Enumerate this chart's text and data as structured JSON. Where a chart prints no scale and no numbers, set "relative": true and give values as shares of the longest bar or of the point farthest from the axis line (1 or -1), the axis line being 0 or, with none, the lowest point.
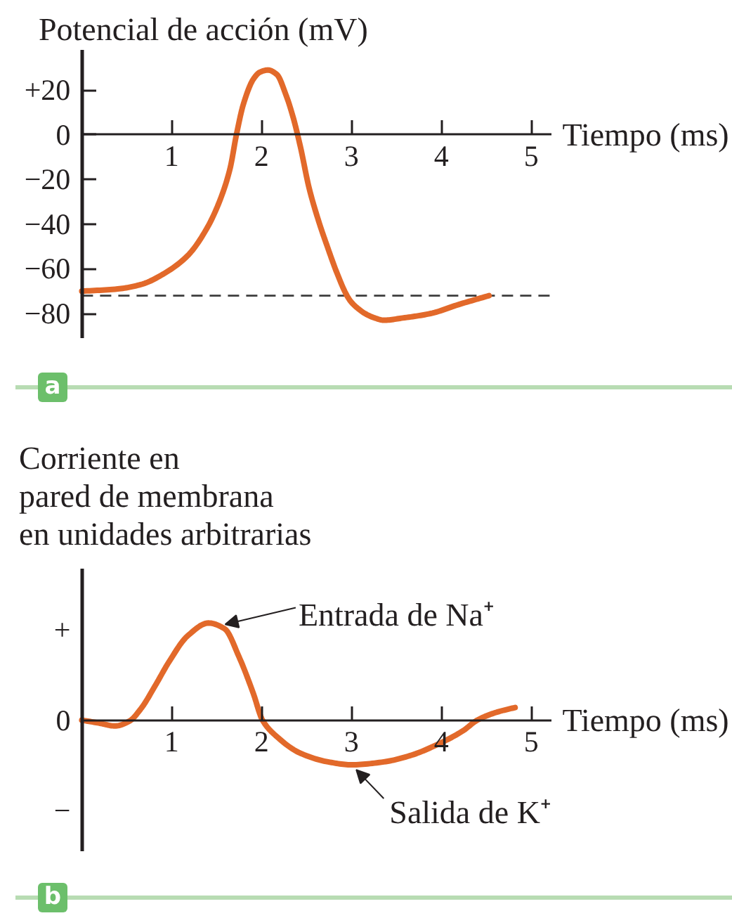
{
  "chart_data": [
    {
      "type": "line",
      "title": "a",
      "ylabel": "Potencial de acción (mV)",
      "xlabel": "Tiempo (ms)",
      "x": [
        0,
        0.4,
        0.66,
        0.92,
        1.18,
        1.39,
        1.54,
        1.65,
        1.72,
        1.8,
        1.91,
        1.98,
        2.07,
        2.17,
        2.27,
        2.35,
        2.43,
        2.53,
        2.63,
        2.74,
        2.84,
        2.95,
        3.0,
        3.08,
        3.15,
        3.26,
        3.36,
        3.57,
        3.88,
        4.19,
        4.53
      ],
      "series": [
        {
          "color": "#e2692a",
          "values": [
            -70,
            -69,
            -67,
            -62,
            -54,
            -42,
            -29,
            -15,
            0,
            14,
            25,
            28,
            29,
            27,
            18,
            8,
            -5,
            -24,
            -38,
            -51,
            -62,
            -72,
            -75,
            -78,
            -80,
            -82,
            -83,
            -82,
            -80,
            -76,
            -72
          ]
        }
      ],
      "xlim": [
        0,
        5.22
      ],
      "xticks": [
        1,
        2,
        3,
        4,
        5
      ],
      "ylim": [
        -91,
        38
      ],
      "yticks": [
        {
          "value": 20,
          "label": "+20"
        },
        0,
        {
          "value": -20,
          "label": "−20"
        },
        {
          "value": -40,
          "label": "−40"
        },
        {
          "value": -60,
          "label": "−60"
        },
        {
          "value": -80,
          "label": "−80"
        }
      ],
      "ref_lines": [
        {
          "axis": "y",
          "value": -72,
          "color": "#3c3c3c",
          "line_style": "dashed"
        }
      ]
    },
    {
      "type": "line",
      "title": "b",
      "relative": true,
      "ylabel": "Corriente en\npared de membrana\nen unidades arbitrarias",
      "xlabel": "Tiempo (ms)",
      "x": [
        0,
        0.19,
        0.37,
        0.53,
        0.66,
        0.82,
        0.97,
        1.18,
        1.41,
        1.59,
        1.75,
        1.91,
        2.01,
        2.17,
        2.43,
        2.74,
        3.0,
        3.36,
        3.67,
        3.98,
        4.24,
        4.4,
        4.61,
        4.82
      ],
      "series": [
        {
          "color": "#e2692a",
          "values": [
            0,
            -0.03,
            -0.06,
            -0.01,
            0.12,
            0.36,
            0.6,
            0.87,
            1,
            0.94,
            0.65,
            0.27,
            0,
            -0.17,
            -0.34,
            -0.43,
            -0.46,
            -0.43,
            -0.36,
            -0.24,
            -0.11,
            0,
            0.08,
            0.13
          ]
        }
      ],
      "xlim": [
        0,
        5.22
      ],
      "xticks": [
        1,
        2,
        3,
        4,
        5
      ],
      "annotations": [
        "+",
        "0",
        "−",
        {
          "text": "Entrada de Na⁺",
          "x": 1.52,
          "y": 0.97
        },
        {
          "text": "Salida de K⁺",
          "x": 3.0,
          "y": -0.46
        }
      ]
    }
  ]
}
